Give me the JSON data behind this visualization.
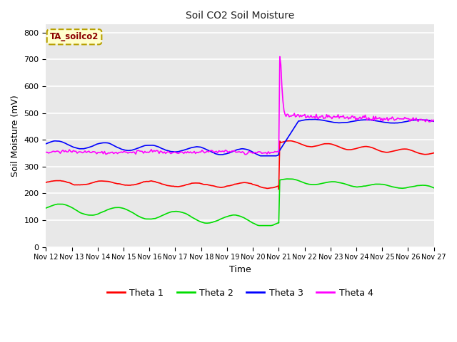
{
  "title": "Soil CO2 Soil Moisture",
  "xlabel": "Time",
  "ylabel": "Soil Moisture (mV)",
  "annotation": "TA_soilco2",
  "ylim": [
    0,
    830
  ],
  "yticks": [
    0,
    100,
    200,
    300,
    400,
    500,
    600,
    700,
    800
  ],
  "x_labels": [
    "Nov 12",
    "Nov 13",
    "Nov 14",
    "Nov 15",
    "Nov 16",
    "Nov 17",
    "Nov 18",
    "Nov 19",
    "Nov 20",
    "Nov 21",
    "Nov 22",
    "Nov 23",
    "Nov 24",
    "Nov 25",
    "Nov 26",
    "Nov 27"
  ],
  "colors": {
    "theta1": "#ff0000",
    "theta2": "#00dd00",
    "theta3": "#0000ff",
    "theta4": "#ff00ff"
  },
  "bg_color": "#e8e8e8",
  "grid_color": "#ffffff",
  "legend_labels": [
    "Theta 1",
    "Theta 2",
    "Theta 3",
    "Theta 4"
  ],
  "n_before": 180,
  "n_after": 150,
  "seed": 10
}
